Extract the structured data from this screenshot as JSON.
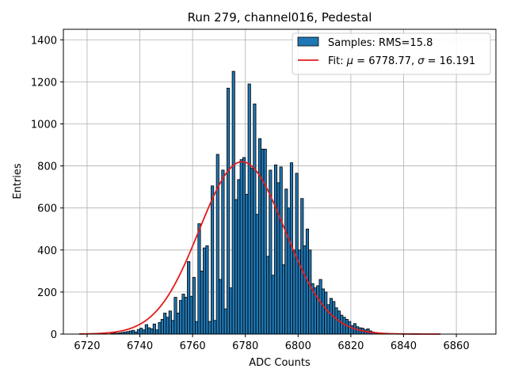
{
  "chart_data": {
    "type": "bar",
    "title": "Run 279, channel016, Pedestal",
    "xlabel": "ADC Counts",
    "ylabel": "Entries",
    "xlim": [
      6711,
      6875
    ],
    "ylim": [
      0,
      1450
    ],
    "xticks": [
      6720,
      6740,
      6760,
      6780,
      6800,
      6820,
      6840,
      6860
    ],
    "yticks": [
      0,
      200,
      400,
      600,
      800,
      1000,
      1200,
      1400
    ],
    "grid": true,
    "legend_position": "top-right",
    "bar_color": "#1f77b4",
    "fit_color": "#e41a1c",
    "legend": {
      "bars_label": "Samples: RMS=15.8",
      "fit_label_prefix": "Fit: ",
      "fit_mu_symbol": "μ",
      "fit_mu_text": " = 6778.77, ",
      "fit_sigma_symbol": "σ",
      "fit_sigma_text": " = 16.191"
    },
    "fit": {
      "mu": 6778.77,
      "sigma": 16.191,
      "amplitude": 820,
      "x_range": [
        6717,
        6854
      ]
    },
    "histogram": {
      "bin_start": 6729,
      "bin_width": 1,
      "counts": [
        3,
        5,
        4,
        6,
        8,
        10,
        12,
        15,
        18,
        10,
        22,
        28,
        20,
        45,
        30,
        25,
        48,
        20,
        55,
        70,
        100,
        80,
        110,
        65,
        175,
        100,
        160,
        190,
        175,
        345,
        180,
        270,
        60,
        525,
        300,
        410,
        420,
        60,
        705,
        65,
        855,
        260,
        780,
        120,
        1170,
        220,
        1250,
        640,
        735,
        830,
        840,
        665,
        1190,
        790,
        1095,
        570,
        930,
        880,
        880,
        370,
        780,
        280,
        805,
        720,
        795,
        330,
        690,
        600,
        815,
        400,
        765,
        400,
        645,
        420,
        500,
        400,
        240,
        220,
        230,
        260,
        215,
        200,
        140,
        170,
        155,
        125,
        110,
        90,
        80,
        70,
        60,
        40,
        50,
        35,
        30,
        28,
        20,
        25,
        15,
        10,
        8,
        6,
        5,
        4,
        3,
        2
      ]
    }
  }
}
